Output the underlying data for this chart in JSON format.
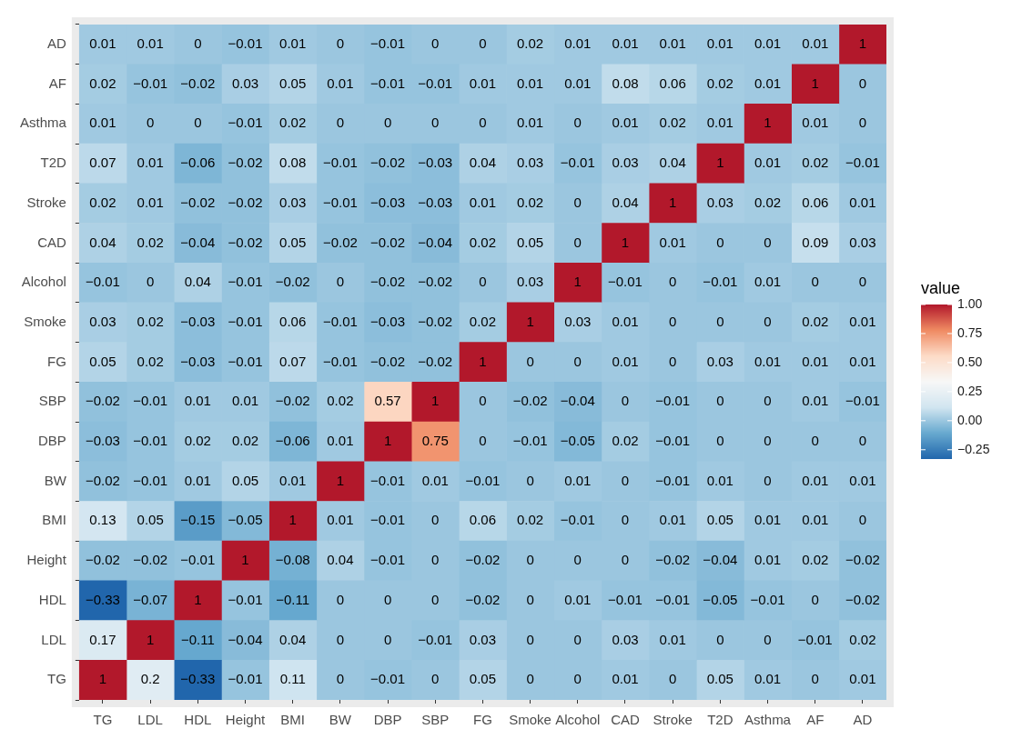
{
  "chart_data": {
    "type": "heatmap",
    "clabel": "value",
    "categories": [
      "TG",
      "LDL",
      "HDL",
      "Height",
      "BMI",
      "BW",
      "DBP",
      "SBP",
      "FG",
      "Smoke",
      "Alcohol",
      "CAD",
      "Stroke",
      "T2D",
      "Asthma",
      "AF",
      "AD"
    ],
    "y_categories": [
      "AD",
      "AF",
      "Asthma",
      "T2D",
      "Stroke",
      "CAD",
      "Alcohol",
      "Smoke",
      "FG",
      "SBP",
      "DBP",
      "BW",
      "BMI",
      "Height",
      "HDL",
      "LDL",
      "TG"
    ],
    "cells": [
      [
        0.01,
        0.01,
        0,
        -0.01,
        0.01,
        0,
        -0.01,
        0,
        0,
        0.02,
        0.01,
        0.01,
        0.01,
        0.01,
        0.01,
        0.01,
        1
      ],
      [
        0.02,
        -0.01,
        -0.02,
        0.03,
        0.05,
        0.01,
        -0.01,
        -0.01,
        0.01,
        0.01,
        0.01,
        0.08,
        0.06,
        0.02,
        0.01,
        1,
        0
      ],
      [
        0.01,
        0,
        0,
        -0.01,
        0.02,
        0,
        0,
        0,
        0,
        0.01,
        0,
        0.01,
        0.02,
        0.01,
        1,
        0.01,
        0
      ],
      [
        0.07,
        0.01,
        -0.06,
        -0.02,
        0.08,
        -0.01,
        -0.02,
        -0.03,
        0.04,
        0.03,
        -0.01,
        0.03,
        0.04,
        1,
        0.01,
        0.02,
        -0.01
      ],
      [
        0.02,
        0.01,
        -0.02,
        -0.02,
        0.03,
        -0.01,
        -0.03,
        -0.03,
        0.01,
        0.02,
        0,
        0.04,
        1,
        0.03,
        0.02,
        0.06,
        0.01
      ],
      [
        0.04,
        0.02,
        -0.04,
        -0.02,
        0.05,
        -0.02,
        -0.02,
        -0.04,
        0.02,
        0.05,
        0,
        1,
        0.01,
        0,
        0,
        0.09,
        0.03
      ],
      [
        -0.01,
        0,
        0.04,
        -0.01,
        -0.02,
        0,
        -0.02,
        -0.02,
        0,
        0.03,
        1,
        -0.01,
        0,
        -0.01,
        0.01,
        0,
        0
      ],
      [
        0.03,
        0.02,
        -0.03,
        -0.01,
        0.06,
        -0.01,
        -0.03,
        -0.02,
        0.02,
        1,
        0.03,
        0.01,
        0,
        0,
        0,
        0.02,
        0.01
      ],
      [
        0.05,
        0.02,
        -0.03,
        -0.01,
        0.07,
        -0.01,
        -0.02,
        -0.02,
        1,
        0,
        0,
        0.01,
        0,
        0.03,
        0.01,
        0.01,
        0.01
      ],
      [
        -0.02,
        -0.01,
        0.01,
        0.01,
        -0.02,
        0.02,
        0.57,
        1,
        0,
        -0.02,
        -0.04,
        0,
        -0.01,
        0,
        0,
        0.01,
        -0.01
      ],
      [
        -0.03,
        -0.01,
        0.02,
        0.02,
        -0.06,
        0.01,
        1,
        0.75,
        0,
        -0.01,
        -0.05,
        0.02,
        -0.01,
        0,
        0,
        0,
        0
      ],
      [
        -0.02,
        -0.01,
        0.01,
        0.05,
        0.01,
        1,
        -0.01,
        0.01,
        -0.01,
        0,
        0.01,
        0,
        -0.01,
        0.01,
        0,
        0.01,
        0.01
      ],
      [
        0.13,
        0.05,
        -0.15,
        -0.05,
        1,
        0.01,
        -0.01,
        0,
        0.06,
        0.02,
        -0.01,
        0,
        0.01,
        0.05,
        0.01,
        0.01,
        0
      ],
      [
        -0.02,
        -0.02,
        -0.01,
        1,
        -0.08,
        0.04,
        -0.01,
        0,
        -0.02,
        0,
        0,
        0,
        -0.02,
        -0.04,
        0.01,
        0.02,
        -0.02
      ],
      [
        -0.33,
        -0.07,
        1,
        -0.01,
        -0.11,
        0,
        0,
        0,
        -0.02,
        0,
        0.01,
        -0.01,
        -0.01,
        -0.05,
        -0.01,
        0,
        -0.02
      ],
      [
        0.17,
        1,
        -0.11,
        -0.04,
        0.04,
        0,
        0,
        -0.01,
        0.03,
        0,
        0,
        0.03,
        0.01,
        0,
        0,
        -0.01,
        0.02
      ],
      [
        1,
        0.2,
        -0.33,
        -0.01,
        0.11,
        0,
        -0.01,
        0,
        0.05,
        0,
        0,
        0.01,
        0,
        0.05,
        0.01,
        0,
        0.01
      ]
    ],
    "cell_labels": [
      [
        "0.01",
        "0.01",
        "0",
        "−0.01",
        "0.01",
        "0",
        "−0.01",
        "0",
        "0",
        "0.02",
        "0.01",
        "0.01",
        "0.01",
        "0.01",
        "0.01",
        "0.01",
        "1"
      ],
      [
        "0.02",
        "−0.01",
        "−0.02",
        "0.03",
        "0.05",
        "0.01",
        "−0.01",
        "−0.01",
        "0.01",
        "0.01",
        "0.01",
        "0.08",
        "0.06",
        "0.02",
        "0.01",
        "1",
        "0"
      ],
      [
        "0.01",
        "0",
        "0",
        "−0.01",
        "0.02",
        "0",
        "0",
        "0",
        "0",
        "0.01",
        "0",
        "0.01",
        "0.02",
        "0.01",
        "1",
        "0.01",
        "0"
      ],
      [
        "0.07",
        "0.01",
        "−0.06",
        "−0.02",
        "0.08",
        "−0.01",
        "−0.02",
        "−0.03",
        "0.04",
        "0.03",
        "−0.01",
        "0.03",
        "0.04",
        "1",
        "0.01",
        "0.02",
        "−0.01"
      ],
      [
        "0.02",
        "0.01",
        "−0.02",
        "−0.02",
        "0.03",
        "−0.01",
        "−0.03",
        "−0.03",
        "0.01",
        "0.02",
        "0",
        "0.04",
        "1",
        "0.03",
        "0.02",
        "0.06",
        "0.01"
      ],
      [
        "0.04",
        "0.02",
        "−0.04",
        "−0.02",
        "0.05",
        "−0.02",
        "−0.02",
        "−0.04",
        "0.02",
        "0.05",
        "0",
        "1",
        "0.01",
        "0",
        "0",
        "0.09",
        "0.03"
      ],
      [
        "−0.01",
        "0",
        "0.04",
        "−0.01",
        "−0.02",
        "0",
        "−0.02",
        "−0.02",
        "0",
        "0.03",
        "1",
        "−0.01",
        "0",
        "−0.01",
        "0.01",
        "0",
        "0"
      ],
      [
        "0.03",
        "0.02",
        "−0.03",
        "−0.01",
        "0.06",
        "−0.01",
        "−0.03",
        "−0.02",
        "0.02",
        "1",
        "0.03",
        "0.01",
        "0",
        "0",
        "0",
        "0.02",
        "0.01"
      ],
      [
        "0.05",
        "0.02",
        "−0.03",
        "−0.01",
        "0.07",
        "−0.01",
        "−0.02",
        "−0.02",
        "1",
        "0",
        "0",
        "0.01",
        "0",
        "0.03",
        "0.01",
        "0.01",
        "0.01"
      ],
      [
        "−0.02",
        "−0.01",
        "0.01",
        "0.01",
        "−0.02",
        "0.02",
        "0.57",
        "1",
        "0",
        "−0.02",
        "−0.04",
        "0",
        "−0.01",
        "0",
        "0",
        "0.01",
        "−0.01"
      ],
      [
        "−0.03",
        "−0.01",
        "0.02",
        "0.02",
        "−0.06",
        "0.01",
        "1",
        "0.75",
        "0",
        "−0.01",
        "−0.05",
        "0.02",
        "−0.01",
        "0",
        "0",
        "0",
        "0"
      ],
      [
        "−0.02",
        "−0.01",
        "0.01",
        "0.05",
        "0.01",
        "1",
        "−0.01",
        "0.01",
        "−0.01",
        "0",
        "0.01",
        "0",
        "−0.01",
        "0.01",
        "0",
        "0.01",
        "0.01"
      ],
      [
        "0.13",
        "0.05",
        "−0.15",
        "−0.05",
        "1",
        "0.01",
        "−0.01",
        "0",
        "0.06",
        "0.02",
        "−0.01",
        "0",
        "0.01",
        "0.05",
        "0.01",
        "0.01",
        "0"
      ],
      [
        "−0.02",
        "−0.02",
        "−0.01",
        "1",
        "−0.08",
        "0.04",
        "−0.01",
        "0",
        "−0.02",
        "0",
        "0",
        "0",
        "−0.02",
        "−0.04",
        "0.01",
        "0.02",
        "−0.02"
      ],
      [
        "−0.33",
        "−0.07",
        "1",
        "−0.01",
        "−0.11",
        "0",
        "0",
        "0",
        "−0.02",
        "0",
        "0.01",
        "−0.01",
        "−0.01",
        "−0.05",
        "−0.01",
        "0",
        "−0.02"
      ],
      [
        "0.17",
        "1",
        "−0.11",
        "−0.04",
        "0.04",
        "0",
        "0",
        "−0.01",
        "0.03",
        "0",
        "0",
        "0.03",
        "0.01",
        "0",
        "0",
        "−0.01",
        "0.02"
      ],
      [
        "1",
        "0.2",
        "−0.33",
        "−0.01",
        "0.11",
        "0",
        "−0.01",
        "0",
        "0.05",
        "0",
        "0",
        "0.01",
        "0",
        "0.05",
        "0.01",
        "0",
        "0.01"
      ]
    ],
    "clim": [
      -0.33,
      1
    ],
    "cticks": [
      {
        "value": -0.25,
        "label": "−0.25"
      },
      {
        "value": 0,
        "label": "0.00"
      },
      {
        "value": 0.25,
        "label": "0.25"
      },
      {
        "value": 0.5,
        "label": "0.50"
      },
      {
        "value": 0.75,
        "label": "0.75"
      },
      {
        "value": 1,
        "label": "1.00"
      }
    ]
  }
}
